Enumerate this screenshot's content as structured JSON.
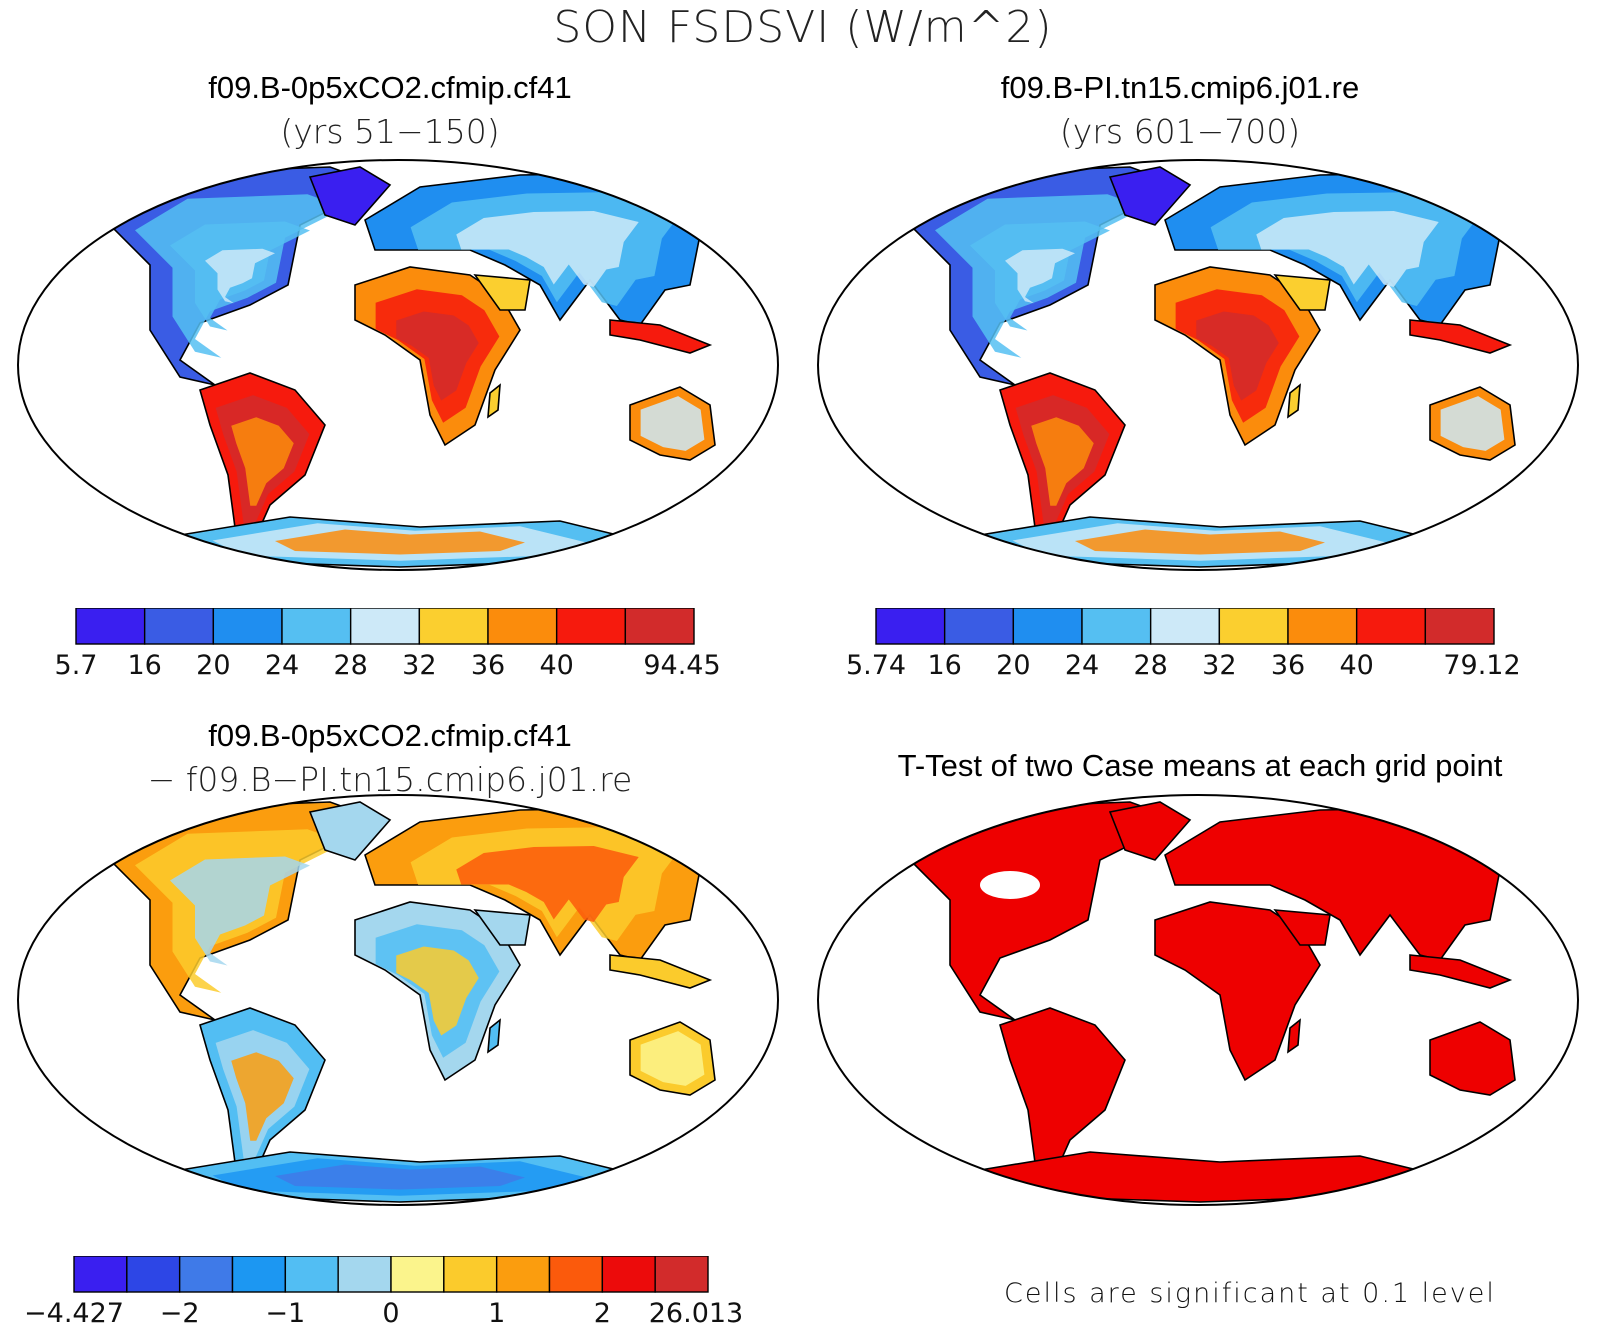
{
  "figure": {
    "title": "SON FSDSVI (W/m^2)"
  },
  "panels": [
    {
      "id": "case1",
      "title": "f09.B-0p5xCO2.cfmip.cf41",
      "subtitle": "(yrs 51−150)",
      "field": "mean",
      "colorbar": {
        "colors": [
          "#3a1ff0",
          "#3a5ce4",
          "#1f8ef0",
          "#55bff2",
          "#cde9f8",
          "#fbcf2f",
          "#fb8c0c",
          "#f61a0d",
          "#d22b2b"
        ],
        "labels": [
          "5.7",
          "16",
          "20",
          "24",
          "28",
          "32",
          "36",
          "40",
          "94.45"
        ]
      }
    },
    {
      "id": "case2",
      "title": "f09.B-PI.tn15.cmip6.j01.re",
      "subtitle": "(yrs 601−700)",
      "field": "mean",
      "colorbar": {
        "colors": [
          "#3a1ff0",
          "#3a5ce4",
          "#1f8ef0",
          "#55bff2",
          "#cde9f8",
          "#fbcf2f",
          "#fb8c0c",
          "#f61a0d",
          "#d22b2b"
        ],
        "labels": [
          "5.74",
          "16",
          "20",
          "24",
          "28",
          "32",
          "36",
          "40",
          "79.12"
        ]
      }
    },
    {
      "id": "diff",
      "title": "f09.B-0p5xCO2.cfmip.cf41",
      "subtitle": "− f09.B−PI.tn15.cmip6.j01.re",
      "field": "difference",
      "colorbar": {
        "colors": [
          "#3a1ff0",
          "#2d46e6",
          "#3f7ae8",
          "#1c97f2",
          "#52bef3",
          "#a4d7ee",
          "#fbf48c",
          "#fbcb2c",
          "#fb9d0e",
          "#fb5a0c",
          "#ec0b0b",
          "#d22b2b"
        ],
        "labels": [
          "−4.427",
          "−2",
          "−1",
          "0",
          "1",
          "2",
          "26.013"
        ]
      }
    },
    {
      "id": "ttest",
      "title": "T-Test of two Case means at each grid point",
      "field": "significance",
      "note": "Cells are significant at 0.1 level",
      "significance_color": "#ee0000"
    }
  ]
}
